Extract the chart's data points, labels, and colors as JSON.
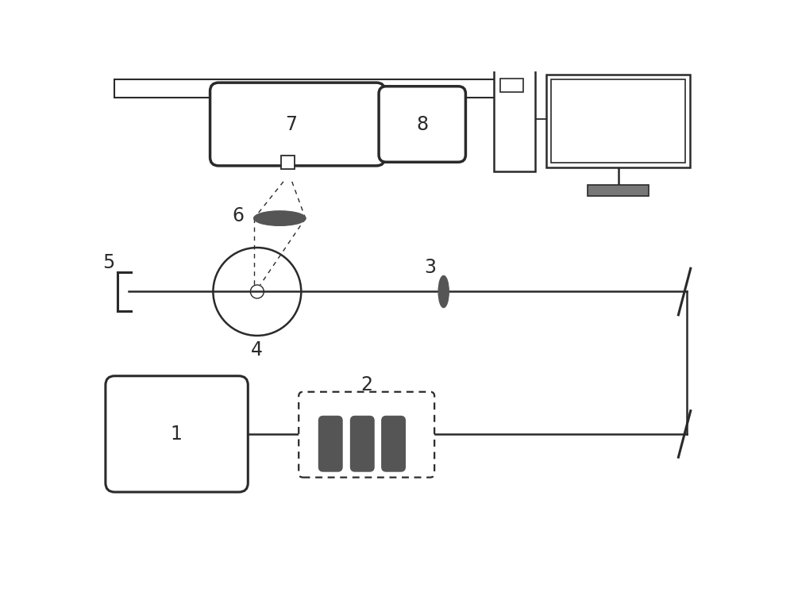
{
  "bg_color": "#ffffff",
  "lc": "#2a2a2a",
  "dg": "#555555",
  "mg": "#777777",
  "figsize": [
    10.0,
    7.46
  ],
  "dpi": 100
}
